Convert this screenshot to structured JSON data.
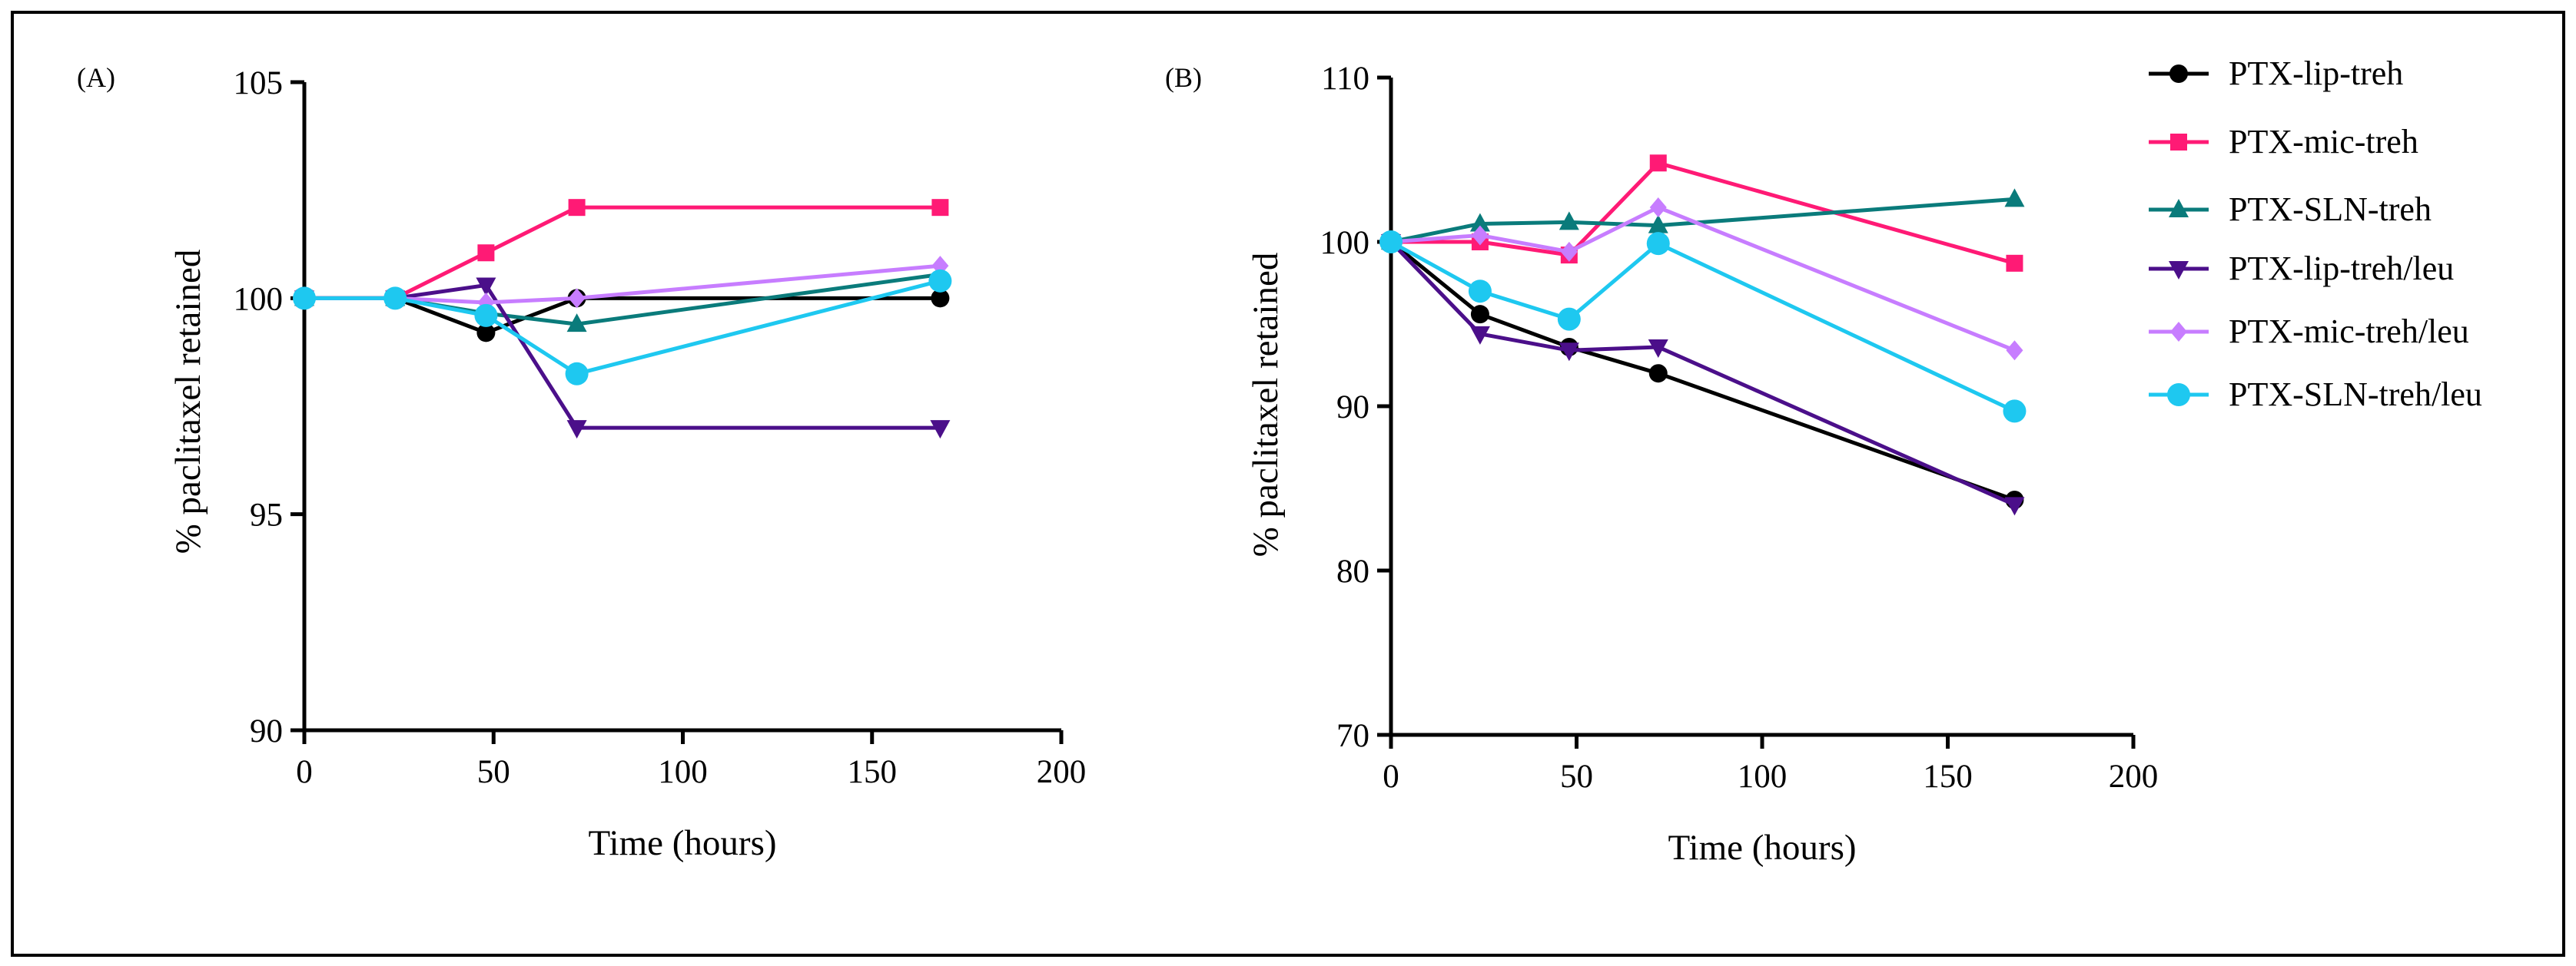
{
  "chart_data": [
    {
      "panel_label": "(A)",
      "type": "line",
      "xlabel": "Time (hours)",
      "ylabel": "% paclitaxel retained",
      "xlim": [
        0,
        200
      ],
      "ylim": [
        90,
        105
      ],
      "xticks": [
        0,
        50,
        100,
        150,
        200
      ],
      "yticks": [
        90,
        95,
        100,
        105
      ],
      "x": [
        0,
        24,
        48,
        72,
        168
      ],
      "series": [
        {
          "name": "PTX-lip-treh",
          "values": [
            100,
            100,
            99.2,
            100,
            100
          ]
        },
        {
          "name": "PTX-mic-treh",
          "values": [
            100,
            100,
            101.05,
            102.1,
            102.1
          ]
        },
        {
          "name": "PTX-SLN-treh",
          "values": [
            100,
            100,
            99.65,
            99.4,
            100.55
          ]
        },
        {
          "name": "PTX-lip-treh/leu",
          "values": [
            100,
            100,
            100.3,
            97,
            97
          ]
        },
        {
          "name": "PTX-mic-treh/leu",
          "values": [
            100,
            100,
            99.9,
            100,
            100.75
          ]
        },
        {
          "name": "PTX-SLN-treh/leu",
          "values": [
            100,
            100,
            99.6,
            98.25,
            100.4
          ]
        }
      ]
    },
    {
      "panel_label": "(B)",
      "type": "line",
      "xlabel": "Time (hours)",
      "ylabel": "% paclitaxel retained",
      "xlim": [
        0,
        200
      ],
      "ylim": [
        70,
        110
      ],
      "xticks": [
        0,
        50,
        100,
        150,
        200
      ],
      "yticks": [
        70,
        80,
        90,
        100,
        110
      ],
      "x": [
        0,
        24,
        48,
        72,
        168
      ],
      "series": [
        {
          "name": "PTX-lip-treh",
          "values": [
            100,
            95.6,
            93.6,
            92,
            84.3
          ]
        },
        {
          "name": "PTX-mic-treh",
          "values": [
            100,
            100,
            99.2,
            104.8,
            98.7
          ]
        },
        {
          "name": "PTX-SLN-treh",
          "values": [
            100,
            101.1,
            101.2,
            101,
            102.6
          ]
        },
        {
          "name": "PTX-lip-treh/leu",
          "values": [
            100,
            94.4,
            93.4,
            93.6,
            84
          ]
        },
        {
          "name": "PTX-mic-treh/leu",
          "values": [
            100,
            100.4,
            99.4,
            102.1,
            93.4
          ]
        },
        {
          "name": "PTX-SLN-treh/leu",
          "values": [
            100,
            97,
            95.3,
            99.9,
            89.7
          ]
        }
      ]
    }
  ],
  "legend": [
    {
      "name": "PTX-lip-treh",
      "color": "#000000",
      "marker": "circle"
    },
    {
      "name": "PTX-mic-treh",
      "color": "#ff1a75",
      "marker": "square"
    },
    {
      "name": "PTX-SLN-treh",
      "color": "#0a7b7b",
      "marker": "triangle-up"
    },
    {
      "name": "PTX-lip-treh/leu",
      "color": "#4b0f8a",
      "marker": "triangle-down"
    },
    {
      "name": "PTX-mic-treh/leu",
      "color": "#c77dff",
      "marker": "diamond"
    },
    {
      "name": "PTX-SLN-treh/leu",
      "color": "#1ec8f0",
      "marker": "circle-large"
    }
  ]
}
